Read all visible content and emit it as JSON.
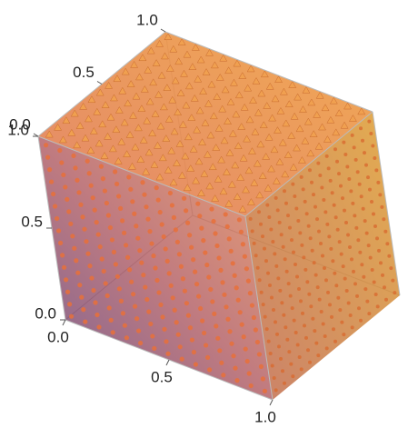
{
  "chart_data": {
    "type": "vector-field-3d",
    "xlim": [
      0,
      1
    ],
    "ylim": [
      0,
      1
    ],
    "zlim": [
      0,
      1
    ],
    "xticks": [
      {
        "value": 0,
        "label": "0.0"
      },
      0.5,
      {
        "value": 1,
        "label": "1.0"
      }
    ],
    "yticks": [
      {
        "value": 0,
        "label": "0.0"
      },
      0.5,
      {
        "value": 1,
        "label": "1.0"
      }
    ],
    "zticks": [
      {
        "value": 0,
        "label": "0.0"
      },
      0.5,
      {
        "value": 1,
        "label": "1.0"
      }
    ]
  }
}
